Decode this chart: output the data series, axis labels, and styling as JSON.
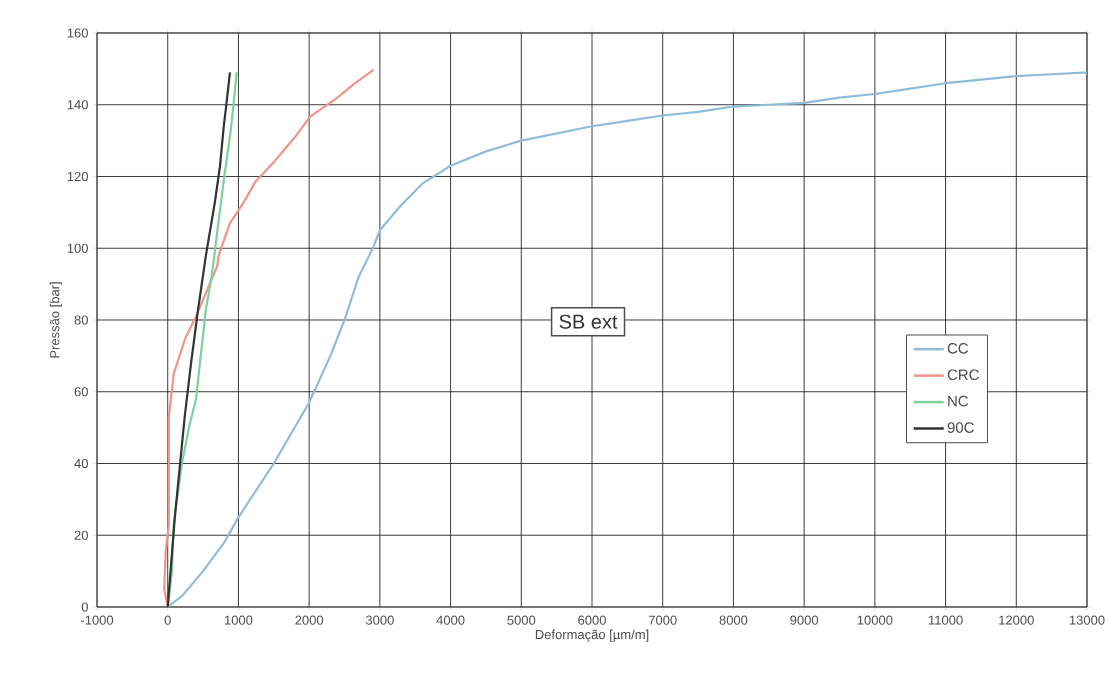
{
  "chart_data": {
    "type": "line",
    "xlabel": "Deformação [µm/m]",
    "ylabel": "Pressão [bar]",
    "annotations": [
      "SB ext"
    ],
    "xlim": [
      -1000,
      13000
    ],
    "xticks": [
      -1000,
      0,
      1000,
      2000,
      3000,
      4000,
      5000,
      6000,
      7000,
      8000,
      9000,
      10000,
      11000,
      12000,
      13000
    ],
    "ylim": [
      0,
      160
    ],
    "yticks": [
      0,
      20,
      40,
      60,
      80,
      100,
      120,
      140,
      160
    ],
    "grid": true,
    "legend": "right",
    "marker": "none",
    "line_style": "solid",
    "series": [
      {
        "name": "CC",
        "color": "#8fbcd8",
        "x": [
          0,
          200,
          500,
          800,
          1000,
          1500,
          2000,
          2300,
          2500,
          2700,
          2900,
          3000,
          3300,
          3600,
          4000,
          4500,
          5000,
          5500,
          6000,
          6500,
          7000,
          7500,
          8000,
          8500,
          9000,
          9500,
          10000,
          10500,
          11000,
          11500,
          12000,
          12500,
          13000
        ],
        "values": [
          0,
          3,
          10,
          18,
          25,
          40,
          57,
          70,
          80,
          92,
          100,
          105,
          112,
          118,
          123,
          127,
          130,
          132,
          134,
          135.5,
          137,
          138,
          139.5,
          140,
          140.5,
          142,
          143,
          144.5,
          146,
          147,
          148,
          148.5,
          149
        ]
      },
      {
        "name": "CRC",
        "color": "#f0948a",
        "x": [
          0,
          -50,
          -30,
          15,
          15,
          85,
          250,
          400,
          550,
          700,
          720,
          880,
          1050,
          1245,
          1500,
          1800,
          2010,
          2400,
          2650,
          2910
        ],
        "values": [
          0,
          5,
          15,
          23,
          53,
          65,
          75,
          81,
          88,
          95,
          98,
          107,
          112,
          118.7,
          124,
          131,
          136.6,
          142,
          146,
          149.7
        ]
      },
      {
        "name": "NC",
        "color": "#7fd19b",
        "x": [
          0,
          60,
          85,
          200,
          300,
          400,
          540,
          620,
          720,
          800,
          890,
          930,
          975
        ],
        "values": [
          0,
          10,
          23,
          40,
          50,
          58,
          83,
          92,
          107.6,
          120,
          132.7,
          140,
          149
        ]
      },
      {
        "name": "90C",
        "color": "#333333",
        "x": [
          0,
          40,
          100,
          140,
          240,
          330,
          430,
          540,
          665,
          740,
          790,
          840,
          880
        ],
        "values": [
          0,
          10,
          25,
          33,
          53,
          68,
          83,
          98,
          112.6,
          123,
          133.5,
          142,
          149
        ]
      }
    ]
  }
}
